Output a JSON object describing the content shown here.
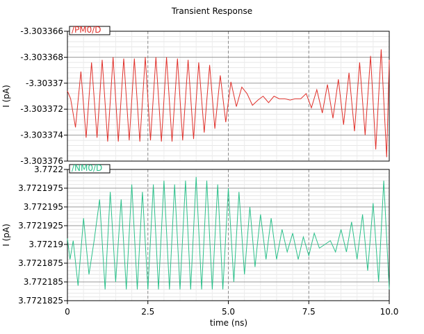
{
  "chart_data": {
    "type": "line",
    "title": "Transient Response",
    "xlabel": "time (ns)",
    "xlim": [
      0,
      10
    ],
    "x_ticks": [
      "0",
      "2.5",
      "5.0",
      "7.5",
      "10.0"
    ],
    "panels": [
      {
        "series_name": "/PM0/D",
        "ylabel": "I (pA)",
        "ylim": [
          -3.303376,
          -3.303366
        ],
        "y_ticks": [
          "-3.303366",
          "-3.303368",
          "-3.30337",
          "-3.303372",
          "-3.303374",
          "-3.303376"
        ],
        "color": "#e0302a",
        "x": [
          0,
          0.1,
          0.25,
          0.42,
          0.58,
          0.75,
          0.92,
          1.08,
          1.25,
          1.42,
          1.58,
          1.75,
          1.92,
          2.08,
          2.25,
          2.42,
          2.58,
          2.75,
          2.92,
          3.08,
          3.25,
          3.42,
          3.58,
          3.75,
          3.92,
          4.08,
          4.25,
          4.42,
          4.58,
          4.75,
          4.92,
          5.08,
          5.25,
          5.42,
          5.58,
          5.75,
          5.92,
          6.08,
          6.25,
          6.42,
          6.58,
          6.75,
          6.92,
          7.08,
          7.25,
          7.42,
          7.58,
          7.75,
          7.92,
          8.08,
          8.25,
          8.42,
          8.58,
          8.75,
          8.92,
          9.08,
          9.25,
          9.42,
          9.58,
          9.75,
          9.92,
          10
        ],
        "values": [
          -3.3033706,
          -3.3033712,
          -3.3033734,
          -3.3033691,
          -3.3033742,
          -3.3033684,
          -3.3033742,
          -3.3033682,
          -3.3033745,
          -3.303368,
          -3.3033745,
          -3.3033681,
          -3.3033744,
          -3.3033681,
          -3.3033745,
          -3.303368,
          -3.3033744,
          -3.303368,
          -3.3033745,
          -3.303368,
          -3.3033745,
          -3.3033681,
          -3.3033744,
          -3.3033682,
          -3.3033743,
          -3.3033684,
          -3.3033738,
          -3.3033686,
          -3.3033735,
          -3.3033694,
          -3.303373,
          -3.3033699,
          -3.3033718,
          -3.3033703,
          -3.3033708,
          -3.3033717,
          -3.3033713,
          -3.303371,
          -3.3033715,
          -3.303371,
          -3.3033712,
          -3.3033712,
          -3.3033713,
          -3.3033712,
          -3.3033712,
          -3.3033708,
          -3.3033719,
          -3.3033705,
          -3.3033723,
          -3.3033701,
          -3.3033727,
          -3.3033697,
          -3.3033732,
          -3.3033692,
          -3.3033737,
          -3.3033684,
          -3.303374,
          -3.3033679,
          -3.3033751,
          -3.3033674,
          -3.3033757,
          -3.3033682
        ]
      },
      {
        "series_name": "/NM0/D",
        "ylabel": "I (pA)",
        "ylim": [
          3.7721825,
          3.7722
        ],
        "y_ticks": [
          "3.7722",
          "3.7721975",
          "3.772195",
          "3.7721925",
          "3.77219",
          "3.7721875",
          "3.772185",
          "3.7721825"
        ],
        "color": "#2bc08a",
        "x": [
          0,
          0.08,
          0.18,
          0.33,
          0.5,
          0.67,
          0.83,
          1,
          1.17,
          1.33,
          1.5,
          1.67,
          1.83,
          2,
          2.17,
          2.33,
          2.5,
          2.67,
          2.83,
          3,
          3.17,
          3.33,
          3.5,
          3.67,
          3.83,
          4,
          4.17,
          4.33,
          4.5,
          4.67,
          4.83,
          5,
          5.17,
          5.33,
          5.5,
          5.67,
          5.83,
          6,
          6.17,
          6.33,
          6.5,
          6.67,
          6.83,
          7,
          7.17,
          7.33,
          7.5,
          7.67,
          7.83,
          8,
          8.17,
          8.33,
          8.5,
          8.67,
          8.83,
          9,
          9.17,
          9.33,
          9.5,
          9.67,
          9.83,
          10
        ],
        "values": [
          3.7721908,
          3.772188,
          3.7721905,
          3.7721845,
          3.7721935,
          3.772186,
          3.7721905,
          3.772196,
          3.772184,
          3.772197,
          3.772185,
          3.772196,
          3.772184,
          3.772198,
          3.772184,
          3.772197,
          3.772184,
          3.772198,
          3.772184,
          3.7721985,
          3.772184,
          3.772198,
          3.772184,
          3.7721985,
          3.772184,
          3.772199,
          3.772184,
          3.7721985,
          3.772184,
          3.772198,
          3.772184,
          3.7721975,
          3.772185,
          3.772197,
          3.772186,
          3.772195,
          3.772187,
          3.772194,
          3.772188,
          3.7721935,
          3.772188,
          3.772192,
          3.772189,
          3.7721915,
          3.772188,
          3.772191,
          3.7721885,
          3.7721915,
          3.7721895,
          3.77219,
          3.7721905,
          3.772189,
          3.772192,
          3.772189,
          3.772193,
          3.772188,
          3.772194,
          3.7721865,
          3.7721955,
          3.772185,
          3.7721985,
          3.772184
        ]
      }
    ]
  }
}
